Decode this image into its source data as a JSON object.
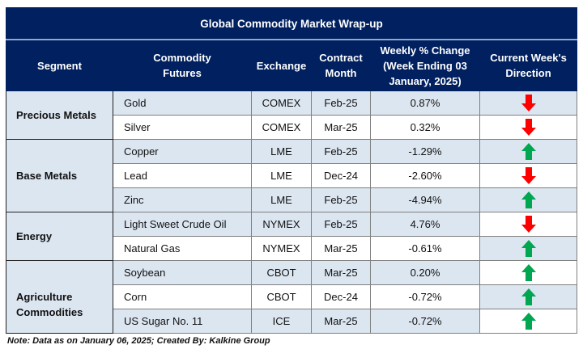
{
  "title": "Global Commodity Market Wrap-up",
  "headers": {
    "segment": "Segment",
    "commodity": "Commodity Futures",
    "exchange": "Exchange",
    "contract": "Contract Month",
    "weekly": "Weekly % Change (Week Ending  03 January, 2025)",
    "direction": "Current Week's Direction"
  },
  "colors": {
    "up": "#00a650",
    "down": "#ff0000",
    "header": "#002060",
    "stripe": "#dce6f1"
  },
  "segments": [
    {
      "name": "Precious Metals",
      "rows": [
        {
          "commodity": "Gold",
          "exchange": "COMEX",
          "month": "Feb-25",
          "change": "0.87%",
          "direction": "down"
        },
        {
          "commodity": "Silver",
          "exchange": "COMEX",
          "month": "Mar-25",
          "change": "0.32%",
          "direction": "down"
        }
      ]
    },
    {
      "name": "Base Metals",
      "rows": [
        {
          "commodity": "Copper",
          "exchange": "LME",
          "month": "Feb-25",
          "change": "-1.29%",
          "direction": "up"
        },
        {
          "commodity": "Lead",
          "exchange": "LME",
          "month": "Dec-24",
          "change": "-2.60%",
          "direction": "down"
        },
        {
          "commodity": "Zinc",
          "exchange": "LME",
          "month": "Feb-25",
          "change": "-4.94%",
          "direction": "up"
        }
      ]
    },
    {
      "name": "Energy",
      "rows": [
        {
          "commodity": "Light Sweet Crude Oil",
          "exchange": "NYMEX",
          "month": "Feb-25",
          "change": "4.76%",
          "direction": "down"
        },
        {
          "commodity": "Natural Gas",
          "exchange": "NYMEX",
          "month": "Mar-25",
          "change": "-0.61%",
          "direction": "up"
        }
      ]
    },
    {
      "name": "Agriculture Commodities",
      "rows": [
        {
          "commodity": "Soybean",
          "exchange": "CBOT",
          "month": "Mar-25",
          "change": "0.20%",
          "direction": "up"
        },
        {
          "commodity": "Corn",
          "exchange": "CBOT",
          "month": "Dec-24",
          "change": "-0.72%",
          "direction": "up"
        },
        {
          "commodity": "US Sugar No. 11",
          "exchange": "ICE",
          "month": "Mar-25",
          "change": "-0.72%",
          "direction": "up"
        }
      ]
    }
  ],
  "note": "Note: Data as on January 06, 2025; Created By: Kalkine Group"
}
